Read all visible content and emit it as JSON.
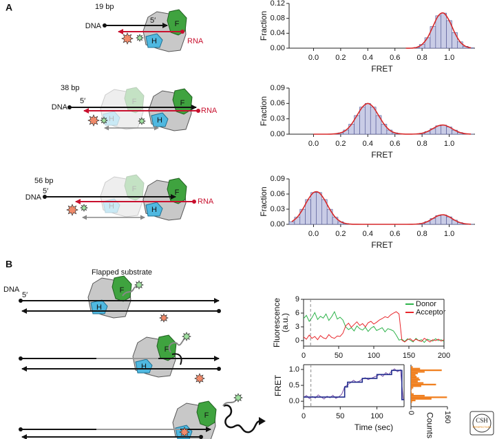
{
  "panel_labels": [
    "A",
    "B"
  ],
  "diagram_a": {
    "lengths": [
      "19 bp",
      "38 bp",
      "56 bp"
    ],
    "dna": "DNA",
    "five_prime": "5′",
    "rna": "RNA"
  },
  "diagram_b": {
    "title": "Flapped substrate",
    "dna": "DNA",
    "five_prime": "5′"
  },
  "protein_labels": [
    "F",
    "H"
  ],
  "logo": {
    "text": "CSH",
    "subtext": "PERSPECTIVES"
  },
  "chart_data": [
    {
      "type": "histogram",
      "xlabel": "FRET",
      "ylabel": "Fraction",
      "color": "#c9cce6",
      "edge_color": "#4a4f8f",
      "fit_color": "#d62728",
      "bins": [
        0.66,
        0.7,
        0.74,
        0.78,
        0.82,
        0.86,
        0.9,
        0.94,
        0.98,
        1.02,
        1.06,
        1.1,
        1.14,
        1.18
      ],
      "values": [
        0.0,
        0.0,
        0.002,
        0.01,
        0.028,
        0.058,
        0.087,
        0.094,
        0.074,
        0.042,
        0.017,
        0.005,
        0.001
      ],
      "xlim": [
        -0.18,
        1.19
      ],
      "xticks": [
        {
          "value": 0,
          "label": "0.0"
        },
        0.2,
        0.4,
        0.6,
        0.8,
        {
          "value": 1,
          "label": "1.0"
        }
      ],
      "ylim": [
        0,
        0.12
      ],
      "yticks": [
        {
          "value": 0,
          "label": "0.00"
        },
        0.04,
        0.08,
        0.12
      ]
    },
    {
      "type": "histogram",
      "xlabel": "FRET",
      "ylabel": "Fraction",
      "color": "#c9cce6",
      "edge_color": "#4a4f8f",
      "fit_color": "#d62728",
      "bins": [
        -0.02,
        0.02,
        0.06,
        0.1,
        0.14,
        0.18,
        0.22,
        0.26,
        0.3,
        0.34,
        0.38,
        0.42,
        0.46,
        0.5,
        0.54,
        0.58,
        0.62,
        0.66,
        0.7,
        0.74,
        0.78,
        0.82,
        0.86,
        0.9,
        0.94,
        0.98,
        1.02,
        1.06,
        1.1,
        1.14,
        1.18
      ],
      "values": [
        0,
        0,
        0,
        0.0001,
        0.0007,
        0.0026,
        0.0081,
        0.0195,
        0.0364,
        0.0529,
        0.06,
        0.0529,
        0.0364,
        0.0195,
        0.0081,
        0.0026,
        0.0007,
        0.0001,
        0.0001,
        0.0005,
        0.0018,
        0.0052,
        0.0109,
        0.0164,
        0.0178,
        0.014,
        0.0079,
        0.0032,
        0.0009,
        0.0002
      ],
      "xlim": [
        -0.18,
        1.19
      ],
      "xticks": [
        {
          "value": 0,
          "label": "0.0"
        },
        0.2,
        0.4,
        0.6,
        0.8,
        {
          "value": 1,
          "label": "1.0"
        }
      ],
      "ylim": [
        0,
        0.09
      ],
      "yticks": [
        {
          "value": 0,
          "label": "0.00"
        },
        0.03,
        0.06,
        0.09
      ]
    },
    {
      "type": "histogram",
      "xlabel": "FRET",
      "ylabel": "Fraction",
      "color": "#c9cce6",
      "edge_color": "#4a4f8f",
      "fit_color": "#d62728",
      "bins": [
        -0.18,
        -0.14,
        -0.1,
        -0.06,
        -0.02,
        0.02,
        0.06,
        0.1,
        0.14,
        0.18,
        0.22,
        0.26,
        0.3,
        0.34,
        0.38,
        0.42,
        0.46,
        0.5,
        0.54,
        0.58,
        0.62,
        0.66,
        0.7,
        0.74,
        0.78,
        0.82,
        0.86,
        0.9,
        0.94,
        0.98,
        1.02,
        1.06,
        1.1,
        1.14,
        1.18
      ],
      "values": [
        0.0052,
        0.0141,
        0.0298,
        0.0491,
        0.063,
        0.063,
        0.0491,
        0.0298,
        0.0141,
        0.0052,
        0.0015,
        0.0003,
        0.0001,
        0,
        0,
        0,
        0,
        0,
        0,
        0,
        0,
        0,
        0.0001,
        0.0005,
        0.0019,
        0.0055,
        0.0115,
        0.0173,
        0.0188,
        0.0148,
        0.0083,
        0.0034,
        0.001,
        0.0002
      ],
      "xlim": [
        -0.18,
        1.19
      ],
      "xticks": [
        {
          "value": 0,
          "label": "0.0"
        },
        0.2,
        0.4,
        0.6,
        0.8,
        {
          "value": 1,
          "label": "1.0"
        }
      ],
      "ylim": [
        0,
        0.09
      ],
      "yticks": [
        {
          "value": 0,
          "label": "0.00"
        },
        0.03,
        0.06,
        0.09
      ]
    },
    {
      "type": "line",
      "ylabel": [
        "Fluorescence",
        "(a.u.)"
      ],
      "legend": "upper right",
      "marker_x": 10,
      "x": [
        0,
        4,
        8,
        12,
        16,
        20,
        24,
        28,
        32,
        36,
        40,
        44,
        48,
        52,
        56,
        60,
        64,
        68,
        72,
        76,
        80,
        84,
        88,
        92,
        96,
        100,
        104,
        108,
        112,
        116,
        120,
        124,
        128,
        132,
        136,
        140,
        144,
        148,
        152,
        156,
        160,
        164,
        168,
        172,
        176,
        180,
        184,
        188,
        192,
        196,
        200
      ],
      "series": [
        {
          "name": "Donor",
          "color": "#2db34a",
          "values": [
            4.8,
            5.5,
            4.2,
            5.0,
            6.1,
            4.6,
            5.3,
            4.9,
            5.8,
            4.4,
            5.2,
            6.3,
            4.7,
            5.1,
            4.5,
            3.0,
            2.4,
            2.8,
            2.1,
            3.2,
            2.6,
            2.3,
            2.9,
            2.0,
            2.7,
            3.1,
            2.2,
            2.5,
            2.8,
            1.9,
            2.6,
            2.4,
            2.1,
            1.2,
            0.1,
            0.3,
            -0.2,
            0.4,
            0.1,
            -0.3,
            0.5,
            0.0,
            0.2,
            -0.4,
            0.3,
            0.1,
            -0.1,
            0.4,
            0.0,
            0.2,
            -0.2
          ]
        },
        {
          "name": "Acceptor",
          "color": "#e8262b",
          "values": [
            0.8,
            0.3,
            1.2,
            0.5,
            0.9,
            0.2,
            1.1,
            0.6,
            0.4,
            1.3,
            0.7,
            0.5,
            1.0,
            0.9,
            1.6,
            3.2,
            3.8,
            2.9,
            3.5,
            4.1,
            3.3,
            3.7,
            3.0,
            3.9,
            4.2,
            3.6,
            4.0,
            4.5,
            4.8,
            5.2,
            5.0,
            5.6,
            6.0,
            6.3,
            5.8,
            0.1,
            -0.3,
            0.2,
            0.4,
            -0.1,
            0.3,
            0.0,
            -0.2,
            0.5,
            0.1,
            -0.3,
            0.2,
            0.0,
            0.3,
            -0.1,
            0.2
          ]
        }
      ],
      "xlim": [
        0,
        200
      ],
      "xticks": [
        0,
        50,
        100,
        150,
        200
      ],
      "ylim": [
        -1.2,
        9
      ],
      "yticks": [
        0,
        3,
        6,
        9
      ]
    },
    {
      "type": "line",
      "xlabel": "Time (sec)",
      "ylabel": "FRET",
      "marker_x": 10,
      "x": [
        0,
        4,
        8,
        12,
        16,
        20,
        24,
        28,
        32,
        36,
        40,
        44,
        48,
        52,
        56,
        60,
        64,
        68,
        72,
        76,
        80,
        84,
        88,
        92,
        96,
        100,
        104,
        108,
        112,
        116,
        120,
        124,
        128,
        132,
        136
      ],
      "series": [
        {
          "color": "#7b4fa8",
          "values": [
            0.12,
            0.18,
            0.08,
            0.15,
            0.1,
            0.2,
            0.13,
            0.07,
            0.16,
            0.11,
            0.19,
            0.09,
            0.14,
            0.22,
            0.45,
            0.52,
            0.58,
            0.66,
            0.6,
            0.63,
            0.7,
            0.74,
            0.68,
            0.72,
            0.76,
            0.8,
            0.85,
            0.78,
            0.9,
            0.84,
            0.95,
            1.02,
            0.93,
            0.99,
            0.05
          ]
        },
        {
          "color": "#1f2a8c",
          "x": [
            0,
            56,
            56,
            60,
            60,
            80,
            80,
            100,
            100,
            120,
            120,
            134,
            134,
            137
          ],
          "values": [
            0.13,
            0.13,
            0.45,
            0.45,
            0.6,
            0.6,
            0.72,
            0.72,
            0.84,
            0.84,
            0.97,
            0.97,
            0.05,
            0.05
          ]
        }
      ],
      "xlim": [
        0,
        137
      ],
      "xticks": [
        0,
        50,
        100
      ],
      "ylim": [
        -0.17,
        1.15
      ],
      "yticks": [
        {
          "value": 0,
          "label": "0.0"
        },
        0.5,
        {
          "value": 1,
          "label": "1.0"
        }
      ]
    },
    {
      "type": "histogram",
      "orientation": "horizontal",
      "xlabel": "Counts",
      "color": "#f07f1e",
      "bins": [
        -0.05,
        0,
        0.05,
        0.1,
        0.15,
        0.2,
        0.25,
        0.3,
        0.35,
        0.4,
        0.45,
        0.5,
        0.55,
        0.6,
        0.65,
        0.7,
        0.75,
        0.8,
        0.85,
        0.9,
        0.95,
        1.0,
        1.05,
        1.1
      ],
      "values": [
        5,
        20,
        90,
        158,
        60,
        12,
        3,
        2,
        4,
        10,
        45,
        110,
        55,
        30,
        40,
        35,
        25,
        20,
        30,
        60,
        135,
        40,
        8
      ],
      "xlim": [
        0,
        160
      ],
      "xticks": [
        0,
        160
      ]
    }
  ]
}
